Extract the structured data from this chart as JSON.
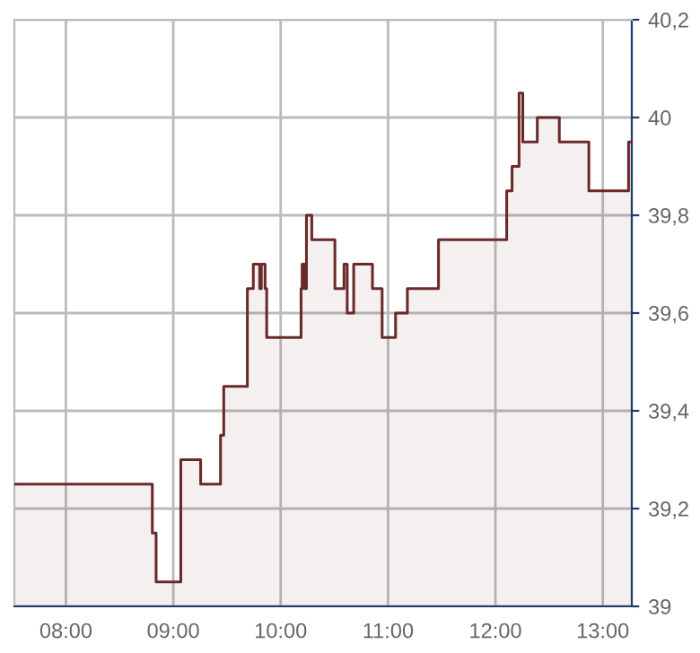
{
  "chart_data": {
    "type": "area",
    "x": [
      7.52,
      8.805,
      8.805,
      8.84,
      8.84,
      9.07,
      9.07,
      9.255,
      9.255,
      9.44,
      9.44,
      9.47,
      9.47,
      9.69,
      9.69,
      9.745,
      9.745,
      9.805,
      9.805,
      9.82,
      9.82,
      9.855,
      9.855,
      9.87,
      9.87,
      10.19,
      10.19,
      10.2,
      10.2,
      10.22,
      10.22,
      10.24,
      10.24,
      10.29,
      10.29,
      10.505,
      10.505,
      10.59,
      10.59,
      10.62,
      10.62,
      10.68,
      10.68,
      10.855,
      10.855,
      10.945,
      10.945,
      11.07,
      11.07,
      11.18,
      11.18,
      11.47,
      11.47,
      12.105,
      12.105,
      12.155,
      12.155,
      12.22,
      12.22,
      12.255,
      12.255,
      12.39,
      12.39,
      12.595,
      12.595,
      12.87,
      12.87,
      13.24,
      13.24,
      13.27
    ],
    "series": [
      {
        "color": "#6b2a2a",
        "values": [
          39.25,
          39.25,
          39.15,
          39.15,
          39.05,
          39.05,
          39.3,
          39.3,
          39.25,
          39.25,
          39.35,
          39.35,
          39.45,
          39.45,
          39.65,
          39.65,
          39.7,
          39.7,
          39.65,
          39.65,
          39.7,
          39.7,
          39.65,
          39.65,
          39.55,
          39.55,
          39.65,
          39.65,
          39.7,
          39.7,
          39.65,
          39.65,
          39.8,
          39.8,
          39.75,
          39.75,
          39.65,
          39.65,
          39.7,
          39.7,
          39.6,
          39.6,
          39.7,
          39.7,
          39.65,
          39.65,
          39.55,
          39.55,
          39.6,
          39.6,
          39.65,
          39.65,
          39.75,
          39.75,
          39.85,
          39.85,
          39.9,
          39.9,
          40.05,
          40.05,
          39.95,
          39.95,
          40.0,
          40.0,
          39.95,
          39.95,
          39.85,
          39.85,
          39.95,
          39.95
        ]
      }
    ],
    "xlim": [
      7.52,
      13.27
    ],
    "xticks": [
      {
        "value": 8,
        "label": "08:00"
      },
      {
        "value": 9,
        "label": "09:00"
      },
      {
        "value": 10,
        "label": "10:00"
      },
      {
        "value": 11,
        "label": "11:00"
      },
      {
        "value": 12,
        "label": "12:00"
      },
      {
        "value": 13,
        "label": "13:00"
      }
    ],
    "ylim": [
      39,
      40.2
    ],
    "yticks": [
      {
        "value": 39,
        "label": "39"
      },
      {
        "value": 39.2,
        "label": "39,2"
      },
      {
        "value": 39.4,
        "label": "39,4"
      },
      {
        "value": 39.6,
        "label": "39,6"
      },
      {
        "value": 39.8,
        "label": "39,8"
      },
      {
        "value": 40,
        "label": "40"
      },
      {
        "value": 40.2,
        "label": "40,2"
      }
    ],
    "grid": true
  }
}
